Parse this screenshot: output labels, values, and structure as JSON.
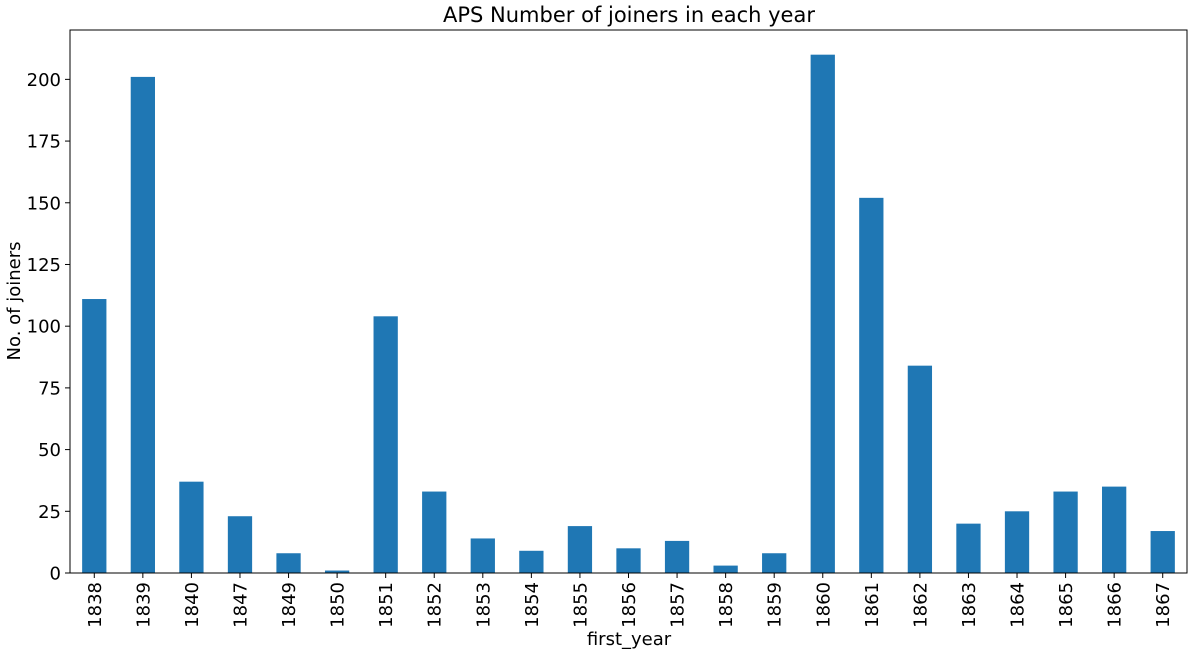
{
  "chart_data": {
    "type": "bar",
    "title": "APS Number of joiners in each year",
    "xlabel": "first_year",
    "ylabel": "No. of joiners",
    "categories": [
      "1838",
      "1839",
      "1840",
      "1847",
      "1849",
      "1850",
      "1851",
      "1852",
      "1853",
      "1854",
      "1855",
      "1856",
      "1857",
      "1858",
      "1859",
      "1860",
      "1861",
      "1862",
      "1863",
      "1864",
      "1865",
      "1866",
      "1867"
    ],
    "values": [
      111,
      201,
      37,
      23,
      8,
      1,
      104,
      33,
      14,
      9,
      19,
      10,
      13,
      3,
      8,
      210,
      152,
      84,
      20,
      25,
      33,
      35,
      17
    ],
    "ylim": [
      0,
      220
    ],
    "yticks": [
      0,
      25,
      50,
      75,
      100,
      125,
      150,
      175,
      200
    ],
    "grid": false,
    "legend": "none",
    "bar_color": "#1f77b4"
  }
}
